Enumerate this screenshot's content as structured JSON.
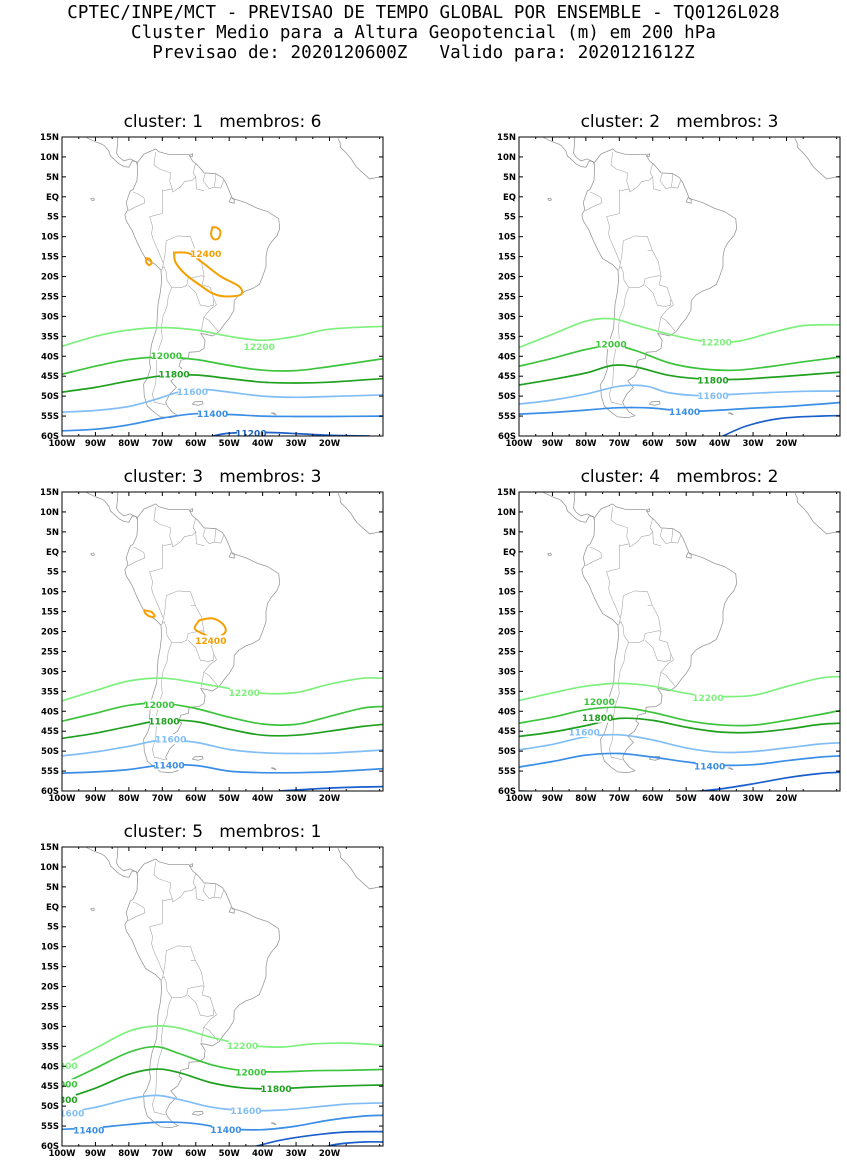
{
  "header": {
    "line1": "CPTEC/INPE/MCT - PREVISAO DE TEMPO GLOBAL POR ENSEMBLE - TQ0126L028",
    "line2": "Cluster Medio para a Altura Geopotencial (m) em 200 hPa",
    "line3": "Previsao de: 2020120600Z   Valido para: 2020121612Z"
  },
  "axes": {
    "lat_labels": [
      "15N",
      "10N",
      "5N",
      "EQ",
      "5S",
      "10S",
      "15S",
      "20S",
      "25S",
      "30S",
      "35S",
      "40S",
      "45S",
      "50S",
      "55S",
      "60S"
    ],
    "lon_labels": [
      "100W",
      "90W",
      "80W",
      "70W",
      "60W",
      "50W",
      "40W",
      "30W",
      "20W"
    ]
  },
  "colors": {
    "c12400": "#f5a000",
    "c12200": "#7ef07e",
    "c12000": "#3cc43c",
    "c11800": "#1fa01f",
    "c11600": "#82bef5",
    "c11400": "#3a8ee6",
    "c11200": "#1a5fcc",
    "coast": "#9a9a9a"
  },
  "panels": [
    {
      "title": "cluster: 1   membros: 6",
      "contours": [
        {
          "level": 12400,
          "label": "12400"
        },
        {
          "level": 12200,
          "label": "12200"
        },
        {
          "level": 12000,
          "label": "12000"
        },
        {
          "level": 11800,
          "label": "11800"
        },
        {
          "level": 11600,
          "label": "11600"
        },
        {
          "level": 11400,
          "label": "11400"
        },
        {
          "level": 11200,
          "label": "11200"
        }
      ]
    },
    {
      "title": "cluster: 2   membros: 3",
      "contours": [
        {
          "level": 12200,
          "label": "12200"
        },
        {
          "level": 12000,
          "label": "12000"
        },
        {
          "level": 11800,
          "label": "11800"
        },
        {
          "level": 11600,
          "label": "11600"
        },
        {
          "level": 11400,
          "label": "11400"
        }
      ]
    },
    {
      "title": "cluster: 3   membros: 3",
      "contours": [
        {
          "level": 12400,
          "label": "12400"
        },
        {
          "level": 12200,
          "label": "12200"
        },
        {
          "level": 12000,
          "label": "12000"
        },
        {
          "level": 11800,
          "label": "11800"
        },
        {
          "level": 11600,
          "label": "11600"
        },
        {
          "level": 11400,
          "label": "11400"
        }
      ]
    },
    {
      "title": "cluster: 4   membros: 2",
      "contours": [
        {
          "level": 12200,
          "label": "12200"
        },
        {
          "level": 12000,
          "label": "12000"
        },
        {
          "level": 11800,
          "label": "11800"
        },
        {
          "level": 11600,
          "label": "11600"
        },
        {
          "level": 11400,
          "label": "11400"
        }
      ]
    },
    {
      "title": "cluster: 5   membros: 1",
      "contours": [
        {
          "level": 12200,
          "label": "12200"
        },
        {
          "level": 12000,
          "label": "12000"
        },
        {
          "level": 11800,
          "label": "11800"
        },
        {
          "level": 11600,
          "label": "11600"
        },
        {
          "level": 11400,
          "label": "11400"
        }
      ]
    }
  ]
}
